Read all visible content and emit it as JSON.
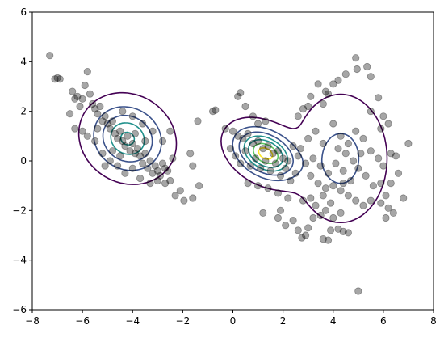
{
  "chart_data": {
    "type": "scatter",
    "title": "",
    "xlabel": "",
    "ylabel": "",
    "xlim": [
      -8,
      8
    ],
    "ylim": [
      -6,
      6
    ],
    "xticks": [
      "−8",
      "−6",
      "−4",
      "−2",
      "0",
      "2",
      "4",
      "6",
      "8"
    ],
    "yticks": [
      "−6",
      "−4",
      "−2",
      "0",
      "2",
      "4",
      "6"
    ],
    "xtick_values": [
      -8,
      -6,
      -4,
      -2,
      0,
      2,
      4,
      6,
      8
    ],
    "ytick_values": [
      -6,
      -4,
      -2,
      0,
      2,
      4,
      6
    ],
    "grid": false,
    "point_color": "#000000",
    "point_alpha": 0.35,
    "contour_colors": [
      "#440154",
      "#3b528b",
      "#21918c",
      "#5ec962",
      "#fde725"
    ],
    "components": [
      {
        "mean": [
          -4.2,
          0.9
        ],
        "sd": [
          0.85,
          0.75
        ],
        "rotation_deg": -33,
        "weight": 0.38
      },
      {
        "mean": [
          1.3,
          0.3
        ],
        "sd": [
          0.75,
          0.5
        ],
        "rotation_deg": -30,
        "weight": 0.34
      },
      {
        "mean": [
          4.3,
          0.1
        ],
        "sd": [
          1.0,
          1.4
        ],
        "rotation_deg": 0,
        "weight": 0.28
      }
    ],
    "points": [
      [
        -7.3,
        4.25
      ],
      [
        -7.1,
        3.3
      ],
      [
        -7.0,
        3.35
      ],
      [
        -6.9,
        3.3
      ],
      [
        -6.4,
        2.8
      ],
      [
        -6.3,
        2.5
      ],
      [
        -6.2,
        2.6
      ],
      [
        -6.1,
        2.2
      ],
      [
        -6.0,
        2.5
      ],
      [
        -5.9,
        3.05
      ],
      [
        -5.8,
        3.6
      ],
      [
        -5.7,
        2.7
      ],
      [
        -5.6,
        2.3
      ],
      [
        -5.5,
        2.1
      ],
      [
        -5.4,
        1.9
      ],
      [
        -5.3,
        2.2
      ],
      [
        -5.2,
        1.6
      ],
      [
        -5.1,
        1.8
      ],
      [
        -5.0,
        1.5
      ],
      [
        -4.9,
        1.3
      ],
      [
        -4.8,
        1.6
      ],
      [
        -4.7,
        1.1
      ],
      [
        -4.6,
        0.9
      ],
      [
        -4.5,
        1.2
      ],
      [
        -4.4,
        0.8
      ],
      [
        -4.3,
        0.6
      ],
      [
        -4.2,
        1.0
      ],
      [
        -4.1,
        0.4
      ],
      [
        -4.0,
        0.7
      ],
      [
        -3.9,
        0.3
      ],
      [
        -3.8,
        0.5
      ],
      [
        -3.7,
        0.2
      ],
      [
        -3.6,
        -0.1
      ],
      [
        -3.5,
        0.3
      ],
      [
        -3.4,
        -0.3
      ],
      [
        -3.3,
        0.0
      ],
      [
        -3.2,
        -0.5
      ],
      [
        -3.1,
        -0.2
      ],
      [
        -3.0,
        -0.4
      ],
      [
        -2.9,
        -0.6
      ],
      [
        -2.8,
        -0.1
      ],
      [
        -2.7,
        -0.9
      ],
      [
        -2.6,
        -0.4
      ],
      [
        -2.5,
        -0.8
      ],
      [
        -6.5,
        1.9
      ],
      [
        -6.0,
        1.2
      ],
      [
        -5.5,
        0.8
      ],
      [
        -5.2,
        0.3
      ],
      [
        -4.9,
        0.0
      ],
      [
        -4.6,
        -0.2
      ],
      [
        -4.3,
        -0.5
      ],
      [
        -4.0,
        -0.3
      ],
      [
        -3.7,
        -0.7
      ],
      [
        -5.1,
        -0.2
      ],
      [
        -4.4,
        2.0
      ],
      [
        -4.0,
        1.8
      ],
      [
        -3.6,
        1.5
      ],
      [
        -3.2,
        1.2
      ],
      [
        -2.8,
        0.8
      ],
      [
        -2.5,
        1.2
      ],
      [
        -2.4,
        0.1
      ],
      [
        -2.1,
        -1.2
      ],
      [
        -2.3,
        -1.4
      ],
      [
        -1.95,
        -1.6
      ],
      [
        -1.6,
        -1.5
      ],
      [
        -1.4,
        1.6
      ],
      [
        -1.35,
        -1.0
      ],
      [
        -1.7,
        0.3
      ],
      [
        -1.6,
        -0.2
      ],
      [
        -6.3,
        1.3
      ],
      [
        -5.8,
        1.0
      ],
      [
        -5.4,
        1.3
      ],
      [
        -4.8,
        0.4
      ],
      [
        -4.5,
        0.2
      ],
      [
        -3.9,
        1.1
      ],
      [
        -3.5,
        0.8
      ],
      [
        -3.3,
        -0.9
      ],
      [
        -3.0,
        -0.8
      ],
      [
        -2.7,
        -0.3
      ],
      [
        -0.8,
        2.0
      ],
      [
        -0.7,
        2.05
      ],
      [
        -0.3,
        1.3
      ],
      [
        -0.1,
        0.5
      ],
      [
        0.2,
        2.6
      ],
      [
        0.3,
        2.75
      ],
      [
        0.5,
        2.2
      ],
      [
        0.8,
        1.8
      ],
      [
        1.0,
        1.5
      ],
      [
        1.3,
        1.6
      ],
      [
        0.0,
        1.2
      ],
      [
        0.2,
        1.0
      ],
      [
        0.4,
        0.9
      ],
      [
        0.6,
        1.1
      ],
      [
        0.8,
        0.7
      ],
      [
        1.0,
        0.8
      ],
      [
        1.2,
        0.5
      ],
      [
        1.4,
        0.6
      ],
      [
        1.6,
        0.3
      ],
      [
        1.8,
        0.4
      ],
      [
        2.0,
        0.1
      ],
      [
        2.2,
        0.0
      ],
      [
        0.1,
        0.2
      ],
      [
        0.3,
        -0.1
      ],
      [
        0.5,
        0.4
      ],
      [
        0.7,
        -0.2
      ],
      [
        0.9,
        0.1
      ],
      [
        1.1,
        -0.3
      ],
      [
        1.3,
        0.0
      ],
      [
        1.5,
        -0.4
      ],
      [
        1.7,
        -0.1
      ],
      [
        1.9,
        -0.6
      ],
      [
        2.1,
        -0.3
      ],
      [
        2.3,
        -0.8
      ],
      [
        2.5,
        -0.5
      ],
      [
        0.6,
        -0.9
      ],
      [
        1.0,
        -1.0
      ],
      [
        1.4,
        -1.1
      ],
      [
        1.8,
        -1.3
      ],
      [
        2.2,
        -1.5
      ],
      [
        1.2,
        -2.1
      ],
      [
        1.9,
        -2.0
      ],
      [
        1.8,
        -2.3
      ],
      [
        2.1,
        -2.6
      ],
      [
        2.4,
        -2.4
      ],
      [
        2.6,
        -2.8
      ],
      [
        2.75,
        -3.1
      ],
      [
        2.9,
        -3.0
      ],
      [
        3.0,
        -2.7
      ],
      [
        3.6,
        -3.15
      ],
      [
        3.8,
        -3.2
      ],
      [
        3.9,
        -2.8
      ],
      [
        4.2,
        -2.75
      ],
      [
        4.4,
        -2.85
      ],
      [
        4.6,
        -2.9
      ],
      [
        3.2,
        -2.3
      ],
      [
        3.5,
        -2.2
      ],
      [
        3.7,
        -2.0
      ],
      [
        4.0,
        -2.3
      ],
      [
        4.3,
        -2.1
      ],
      [
        2.8,
        -1.6
      ],
      [
        3.1,
        -1.5
      ],
      [
        3.3,
        -1.8
      ],
      [
        3.6,
        -1.4
      ],
      [
        3.9,
        -1.7
      ],
      [
        2.6,
        1.8
      ],
      [
        2.8,
        2.1
      ],
      [
        3.0,
        2.2
      ],
      [
        3.1,
        2.6
      ],
      [
        3.4,
        3.1
      ],
      [
        3.6,
        2.3
      ],
      [
        3.8,
        2.7
      ],
      [
        3.7,
        2.8
      ],
      [
        4.0,
        3.1
      ],
      [
        4.2,
        3.25
      ],
      [
        4.5,
        3.5
      ],
      [
        4.9,
        4.15
      ],
      [
        4.95,
        3.7
      ],
      [
        5.35,
        3.8
      ],
      [
        5.5,
        3.4
      ],
      [
        5.8,
        2.55
      ],
      [
        6.0,
        1.8
      ],
      [
        6.2,
        1.5
      ],
      [
        5.5,
        2.0
      ],
      [
        5.9,
        1.3
      ],
      [
        3.0,
        0.9
      ],
      [
        3.3,
        1.2
      ],
      [
        3.6,
        0.7
      ],
      [
        4.0,
        1.5
      ],
      [
        4.3,
        1.0
      ],
      [
        4.6,
        0.7
      ],
      [
        4.9,
        1.2
      ],
      [
        5.2,
        0.9
      ],
      [
        5.5,
        0.4
      ],
      [
        5.8,
        0.1
      ],
      [
        3.2,
        0.1
      ],
      [
        3.5,
        -0.2
      ],
      [
        3.8,
        -0.5
      ],
      [
        4.1,
        -0.1
      ],
      [
        4.4,
        -0.4
      ],
      [
        4.7,
        -0.8
      ],
      [
        5.0,
        -0.3
      ],
      [
        5.3,
        -0.6
      ],
      [
        5.6,
        -1.0
      ],
      [
        5.9,
        -0.9
      ],
      [
        3.4,
        -0.9
      ],
      [
        3.7,
        -1.1
      ],
      [
        4.0,
        -1.0
      ],
      [
        4.3,
        -1.2
      ],
      [
        4.6,
        -1.4
      ],
      [
        4.9,
        -1.6
      ],
      [
        5.2,
        -1.8
      ],
      [
        5.5,
        -1.6
      ],
      [
        5.9,
        -1.7
      ],
      [
        6.2,
        -1.9
      ],
      [
        6.0,
        -0.2
      ],
      [
        6.3,
        0.3
      ],
      [
        6.5,
        0.2
      ],
      [
        6.8,
        -1.5
      ],
      [
        7.0,
        0.7
      ],
      [
        6.6,
        -0.5
      ],
      [
        6.3,
        -0.9
      ],
      [
        6.1,
        -1.4
      ],
      [
        6.4,
        -2.1
      ],
      [
        6.1,
        -2.3
      ],
      [
        2.7,
        0.5
      ],
      [
        2.9,
        -0.1
      ],
      [
        3.1,
        -0.6
      ],
      [
        2.6,
        0.2
      ],
      [
        2.4,
        0.6
      ],
      [
        4.5,
        0.3
      ],
      [
        4.2,
        0.5
      ],
      [
        4.8,
        0.0
      ],
      [
        5.1,
        0.3
      ],
      [
        4.4,
        -0.9
      ],
      [
        5.0,
        -5.25
      ]
    ]
  }
}
